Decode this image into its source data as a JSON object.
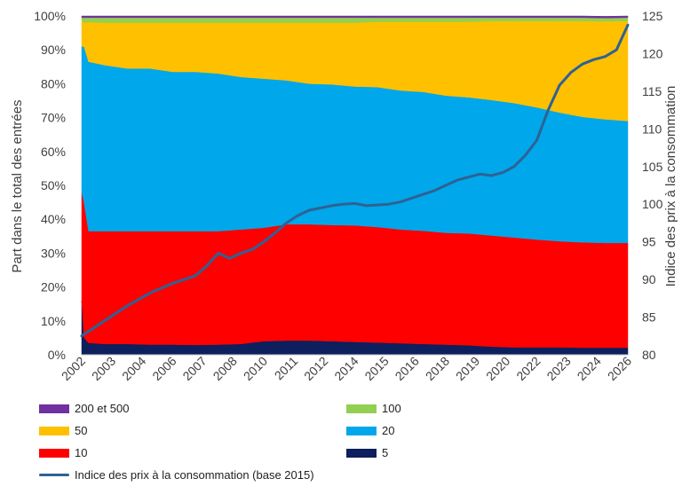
{
  "chart_data": {
    "type": "area",
    "title": "",
    "xlabel": "",
    "ylabel": "Part dans le total des entrées",
    "y2label": "Indice des prix à la consommation",
    "x_tick_labels": [
      "2002",
      "2003",
      "2004",
      "2006",
      "2007",
      "2008",
      "2010",
      "2011",
      "2012",
      "2014",
      "2015",
      "2016",
      "2018",
      "2019",
      "2020",
      "2022",
      "2023",
      "2024",
      "2026"
    ],
    "x_range": [
      2002.0,
      2026.0
    ],
    "ylim": [
      0,
      100
    ],
    "y_ticks": [
      "0%",
      "10%",
      "20%",
      "30%",
      "40%",
      "50%",
      "60%",
      "70%",
      "80%",
      "90%",
      "100%"
    ],
    "y2lim": [
      80,
      125
    ],
    "y2_ticks": [
      "80",
      "85",
      "90",
      "95",
      "100",
      "105",
      "110",
      "115",
      "120",
      "125"
    ],
    "x": [
      2002.0,
      2002.1,
      2002.3,
      2003.0,
      2004.0,
      2005.0,
      2006.0,
      2007.0,
      2008.0,
      2009.0,
      2010.0,
      2011.0,
      2012.0,
      2013.0,
      2014.0,
      2015.0,
      2016.0,
      2017.0,
      2018.0,
      2019.0,
      2020.0,
      2021.0,
      2022.0,
      2023.0,
      2024.0,
      2025.0,
      2026.0
    ],
    "series": [
      {
        "name": "5",
        "color": "#0d1f5c",
        "values": [
          16,
          5,
          3.5,
          3.2,
          3.2,
          3.0,
          3.0,
          2.9,
          3.0,
          3.2,
          4.0,
          4.2,
          4.2,
          4.0,
          3.8,
          3.6,
          3.4,
          3.2,
          3.0,
          2.8,
          2.4,
          2.2,
          2.2,
          2.2,
          2.1,
          2.1,
          2.1
        ]
      },
      {
        "name": "10",
        "color": "#ff0000",
        "values": [
          32,
          40,
          33,
          33.3,
          33.3,
          33.5,
          33.5,
          33.6,
          33.5,
          33.8,
          33.5,
          34.3,
          34.3,
          34.3,
          34.4,
          34.1,
          33.6,
          33.4,
          33.0,
          33.0,
          32.8,
          32.4,
          31.8,
          31.3,
          31.1,
          30.9,
          30.9
        ]
      },
      {
        "name": "20",
        "color": "#00a7ea",
        "values": [
          43,
          46,
          50,
          49,
          48,
          48,
          47,
          47,
          46.5,
          45,
          44,
          42.5,
          41.5,
          41.5,
          41,
          41.3,
          41,
          41,
          40.5,
          40.2,
          40,
          39.7,
          39,
          38,
          37,
          36.5,
          36
        ]
      },
      {
        "name": "50",
        "color": "#ffc000",
        "values": [
          8,
          7,
          11.7,
          12.5,
          13.5,
          13.5,
          14.5,
          14.5,
          15,
          16,
          16.5,
          17,
          18,
          18.2,
          18.8,
          19.3,
          20.3,
          20.7,
          21.8,
          22.3,
          23.3,
          24.2,
          25.5,
          27,
          28.3,
          28.9,
          29.5
        ]
      },
      {
        "name": "100",
        "color": "#92d050",
        "values": [
          0.5,
          1.5,
          1.3,
          1.5,
          1.5,
          1.5,
          1.5,
          1.5,
          1.5,
          1.5,
          1.5,
          1.5,
          1.5,
          1.5,
          1.5,
          1.2,
          1.2,
          1.2,
          1.2,
          1.2,
          1.0,
          1.0,
          1.0,
          1.0,
          1.0,
          1.0,
          1.0
        ]
      },
      {
        "name": "200 et 500",
        "color": "#7030a0",
        "values": [
          0.5,
          0.5,
          0.5,
          0.5,
          0.5,
          0.5,
          0.5,
          0.5,
          0.5,
          0.5,
          0.5,
          0.5,
          0.5,
          0.5,
          0.5,
          0.5,
          0.5,
          0.5,
          0.5,
          0.5,
          0.5,
          0.5,
          0.5,
          0.5,
          0.5,
          0.5,
          0.5
        ]
      }
    ],
    "cpi": {
      "name": "Indice des prix à la consommation (base 2015)",
      "color": "#2e6294",
      "x": [
        2002.0,
        2003.0,
        2004.0,
        2005.0,
        2006.0,
        2007.0,
        2007.5,
        2008.0,
        2008.5,
        2009.0,
        2009.5,
        2010.0,
        2010.5,
        2011.0,
        2011.5,
        2012.0,
        2012.5,
        2013.0,
        2013.5,
        2014.0,
        2014.5,
        2015.0,
        2015.5,
        2016.0,
        2016.5,
        2017.0,
        2017.5,
        2018.0,
        2018.5,
        2019.0,
        2019.5,
        2020.0,
        2020.5,
        2021.0,
        2021.5,
        2022.0,
        2022.5,
        2023.0,
        2023.5,
        2024.0,
        2024.5,
        2025.0,
        2025.5,
        2026.0
      ],
      "values": [
        82.5,
        84.5,
        86.5,
        88.2,
        89.5,
        90.5,
        91.8,
        93.5,
        92.8,
        93.5,
        94,
        95,
        96.2,
        97.5,
        98.5,
        99.2,
        99.5,
        99.8,
        100,
        100.1,
        99.8,
        99.9,
        100,
        100.3,
        100.8,
        101.3,
        101.8,
        102.5,
        103.2,
        103.6,
        104,
        103.8,
        104.2,
        105,
        106.5,
        108.5,
        112.5,
        115.8,
        117.5,
        118.6,
        119.2,
        119.6,
        120.5,
        123.8
      ]
    },
    "legend": {
      "placement": "bottom",
      "entries": [
        "200 et 500",
        "100",
        "50",
        "20",
        "10",
        "5",
        "Indice des prix à la consommation (base 2015)"
      ]
    },
    "grid": false
  }
}
